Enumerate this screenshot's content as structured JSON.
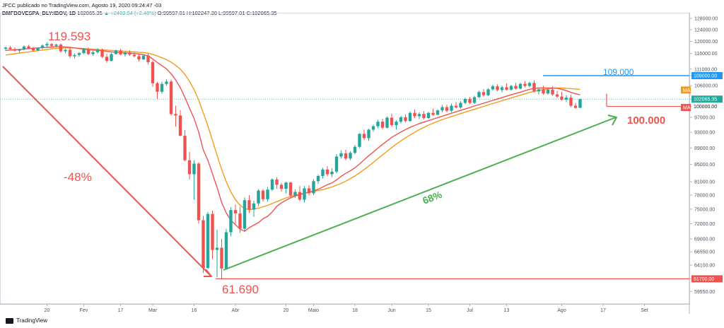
{
  "header": {
    "publisher": "JFCC publicado no TradingView.com, Agosto 19, 2020 09:24:47 -03",
    "symbol": "BMFBOVESPA_DLY:IBOV, 1D",
    "last": "102065.35",
    "change": "▲ +2469.94 (+2.48%)",
    "ohlc": "O:99597.01 H:102247.30 L:99597.01 C:102065.35"
  },
  "footer": {
    "brand": "TradingView"
  },
  "colors": {
    "up": "#26a69a",
    "down": "#ef5350",
    "ma_fast": "#ef5350",
    "ma_slow": "#f59b1c",
    "trend_down": "#ef5350",
    "trend_up": "#4caf50",
    "resistance": "#2196f3",
    "support": "#ef5350"
  },
  "chart_data": {
    "type": "candlestick",
    "ylim": [
      57500,
      129500
    ],
    "y_ticks": [
      59550,
      61700,
      64100,
      66550,
      69000,
      72000,
      75000,
      78000,
      81000,
      85000,
      89000,
      93000,
      97000,
      100000,
      102065.35,
      106000,
      109000,
      111000,
      116000,
      120000,
      124000,
      128000
    ],
    "price_scale_labels": {
      "resistance": "109000.00",
      "support": "61700.00",
      "last": "102065.35",
      "ma_slow_tag": "MA",
      "ma_fast_tag": "MA",
      "level_100k": "100000.00"
    },
    "x_ticks": [
      {
        "i": 9,
        "label": "20"
      },
      {
        "i": 17,
        "label": "Fev"
      },
      {
        "i": 25,
        "label": "17"
      },
      {
        "i": 32,
        "label": "Mar"
      },
      {
        "i": 41,
        "label": "16"
      },
      {
        "i": 50,
        "label": "Abr"
      },
      {
        "i": 61,
        "label": "20"
      },
      {
        "i": 67,
        "label": "Maio"
      },
      {
        "i": 76,
        "label": "18"
      },
      {
        "i": 84,
        "label": "Jun"
      },
      {
        "i": 92,
        "label": "15"
      },
      {
        "i": 101,
        "label": "Jul"
      },
      {
        "i": 109,
        "label": "13"
      },
      {
        "i": 121,
        "label": "Ago"
      },
      {
        "i": 130,
        "label": "17"
      },
      {
        "i": 139,
        "label": "Set"
      }
    ],
    "candles": [
      [
        117500,
        118200,
        116800,
        117900
      ],
      [
        117900,
        118400,
        117200,
        117400
      ],
      [
        117400,
        118000,
        116500,
        116900
      ],
      [
        116900,
        117500,
        116200,
        117300
      ],
      [
        117300,
        118600,
        117000,
        118300
      ],
      [
        118300,
        118800,
        117400,
        117700
      ],
      [
        117700,
        118100,
        116600,
        117000
      ],
      [
        117000,
        118000,
        116700,
        117800
      ],
      [
        117800,
        119000,
        117400,
        118600
      ],
      [
        118600,
        119593,
        118000,
        119100
      ],
      [
        119100,
        119400,
        118200,
        118500
      ],
      [
        118500,
        119200,
        117900,
        118900
      ],
      [
        118900,
        119300,
        116200,
        116700
      ],
      [
        116700,
        117500,
        116000,
        117200
      ],
      [
        117200,
        117900,
        114500,
        115100
      ],
      [
        115100,
        116000,
        114300,
        115500
      ],
      [
        115500,
        116500,
        114900,
        116100
      ],
      [
        116100,
        117800,
        115800,
        117300
      ],
      [
        117300,
        117900,
        115400,
        115800
      ],
      [
        115800,
        116800,
        115200,
        116400
      ],
      [
        116400,
        117700,
        116000,
        117200
      ],
      [
        117200,
        117600,
        114500,
        114900
      ],
      [
        114900,
        115900,
        113000,
        113600
      ],
      [
        113600,
        116200,
        113400,
        115800
      ],
      [
        115800,
        117300,
        115600,
        116900
      ],
      [
        116900,
        117500,
        115400,
        115700
      ],
      [
        115700,
        116700,
        115000,
        116300
      ],
      [
        116300,
        117000,
        115200,
        115600
      ],
      [
        115600,
        116400,
        114700,
        115100
      ],
      [
        115100,
        116000,
        113400,
        114100
      ],
      [
        114100,
        115800,
        113800,
        115300
      ],
      [
        115300,
        116000,
        112500,
        113200
      ],
      [
        113200,
        113800,
        105600,
        106700
      ],
      [
        106700,
        107100,
        102000,
        104200
      ],
      [
        104200,
        107200,
        103600,
        106500
      ],
      [
        106500,
        107900,
        106000,
        107200
      ],
      [
        107200,
        107800,
        97500,
        97900
      ],
      [
        97900,
        100200,
        94500,
        97500
      ],
      [
        97500,
        99000,
        92000,
        92100
      ],
      [
        92100,
        93600,
        85800,
        86000
      ],
      [
        86000,
        88000,
        81500,
        82700
      ],
      [
        82700,
        86000,
        77000,
        85200
      ],
      [
        85200,
        85500,
        72000,
        72700
      ],
      [
        72700,
        73600,
        62700,
        63600
      ],
      [
        63600,
        74400,
        63400,
        74000
      ],
      [
        74000,
        74700,
        65200,
        66900
      ],
      [
        66900,
        70800,
        62000,
        67300
      ],
      [
        67300,
        69000,
        61690,
        63500
      ],
      [
        63500,
        71000,
        63300,
        70300
      ],
      [
        70300,
        75400,
        69500,
        74800
      ],
      [
        74800,
        76000,
        72000,
        74100
      ],
      [
        74100,
        75500,
        70200,
        71000
      ],
      [
        71000,
        77500,
        70400,
        76900
      ],
      [
        76900,
        78000,
        74200,
        74900
      ],
      [
        74900,
        76800,
        73400,
        76200
      ],
      [
        76200,
        79300,
        75600,
        79000
      ],
      [
        79000,
        79300,
        76600,
        77100
      ],
      [
        77100,
        79800,
        76600,
        79200
      ],
      [
        79200,
        81800,
        78900,
        81500
      ],
      [
        81500,
        82000,
        79400,
        80300
      ],
      [
        80300,
        80700,
        78800,
        79400
      ],
      [
        79400,
        81000,
        78400,
        80800
      ],
      [
        80800,
        81000,
        77400,
        77900
      ],
      [
        77900,
        79300,
        77400,
        78700
      ],
      [
        78700,
        80000,
        76700,
        77000
      ],
      [
        77000,
        80000,
        76400,
        79500
      ],
      [
        79500,
        80200,
        77900,
        78400
      ],
      [
        78400,
        81600,
        78000,
        81100
      ],
      [
        81100,
        82600,
        80500,
        82300
      ],
      [
        82300,
        84200,
        81700,
        83800
      ],
      [
        83800,
        84600,
        82200,
        82700
      ],
      [
        82700,
        84100,
        82000,
        83300
      ],
      [
        83300,
        87500,
        82900,
        86900
      ],
      [
        86900,
        88400,
        86400,
        87700
      ],
      [
        87700,
        88600,
        86000,
        86400
      ],
      [
        86400,
        88200,
        86000,
        87800
      ],
      [
        87800,
        89800,
        87500,
        89300
      ],
      [
        89300,
        92800,
        89000,
        92600
      ],
      [
        92600,
        93700,
        91000,
        91500
      ],
      [
        91500,
        94000,
        90800,
        93700
      ],
      [
        93700,
        95000,
        93200,
        94600
      ],
      [
        94600,
        96300,
        94100,
        95800
      ],
      [
        95800,
        96600,
        93800,
        94200
      ],
      [
        94200,
        97200,
        94000,
        96900
      ],
      [
        96900,
        98000,
        94500,
        94900
      ],
      [
        94900,
        96200,
        93700,
        95800
      ],
      [
        95800,
        97400,
        95300,
        97000
      ],
      [
        97000,
        97800,
        95600,
        96000
      ],
      [
        96000,
        98600,
        95800,
        98200
      ],
      [
        98200,
        99100,
        96800,
        97300
      ],
      [
        97300,
        98400,
        96500,
        97900
      ],
      [
        97900,
        98700,
        96400,
        96800
      ],
      [
        96800,
        98500,
        96600,
        98200
      ],
      [
        98200,
        99400,
        97400,
        97700
      ],
      [
        97700,
        99200,
        97500,
        98900
      ],
      [
        98900,
        100400,
        98400,
        99800
      ],
      [
        99800,
        100500,
        98400,
        98800
      ],
      [
        98800,
        100700,
        98400,
        100200
      ],
      [
        100200,
        101200,
        99400,
        99700
      ],
      [
        99700,
        101500,
        99400,
        101000
      ],
      [
        101000,
        102500,
        100600,
        102100
      ],
      [
        102100,
        102700,
        100600,
        101000
      ],
      [
        101000,
        103000,
        100700,
        102600
      ],
      [
        102600,
        104500,
        102400,
        104100
      ],
      [
        104100,
        105000,
        102800,
        103200
      ],
      [
        103200,
        105200,
        102900,
        104900
      ],
      [
        104900,
        106300,
        104500,
        105800
      ],
      [
        105800,
        106400,
        104300,
        104700
      ],
      [
        104700,
        106000,
        104000,
        105500
      ],
      [
        105500,
        106700,
        104500,
        104800
      ],
      [
        104800,
        106200,
        104500,
        105900
      ],
      [
        105900,
        106800,
        104800,
        105100
      ],
      [
        105100,
        106900,
        104900,
        106500
      ],
      [
        106500,
        107400,
        105500,
        105900
      ],
      [
        105900,
        107200,
        105500,
        106800
      ],
      [
        106800,
        107600,
        104000,
        104300
      ],
      [
        104300,
        105500,
        103400,
        104900
      ],
      [
        104900,
        106000,
        103300,
        103700
      ],
      [
        103700,
        105200,
        103300,
        104800
      ],
      [
        104800,
        105800,
        103000,
        103400
      ],
      [
        103400,
        104500,
        102400,
        102800
      ],
      [
        102800,
        104200,
        101600,
        101900
      ],
      [
        101900,
        103200,
        101200,
        102500
      ],
      [
        102500,
        103300,
        99800,
        100200
      ],
      [
        100200,
        101000,
        99400,
        99600
      ],
      [
        99600,
        102247,
        99597,
        102065
      ]
    ],
    "ma_fast": [
      117000,
      117100,
      117200,
      117300,
      117400,
      117600,
      117700,
      117800,
      117900,
      118000,
      118100,
      118200,
      118200,
      118100,
      118000,
      117800,
      117600,
      117400,
      117200,
      117100,
      117000,
      116900,
      116700,
      116500,
      116400,
      116300,
      116200,
      116100,
      116000,
      115800,
      115600,
      115200,
      114200,
      113100,
      112100,
      111100,
      109600,
      107700,
      105400,
      102600,
      99500,
      96700,
      93100,
      88500,
      86000,
      82800,
      79700,
      76400,
      74200,
      72700,
      71800,
      70900,
      70500,
      71200,
      71700,
      72200,
      73000,
      73500,
      74400,
      75600,
      76300,
      76900,
      77400,
      77800,
      78100,
      78400,
      78600,
      78900,
      79300,
      79800,
      80300,
      80700,
      81400,
      82200,
      82900,
      83500,
      84200,
      85100,
      86100,
      87100,
      88000,
      89000,
      89900,
      90800,
      91700,
      92400,
      93100,
      93700,
      94300,
      94800,
      95300,
      95700,
      96100,
      96500,
      96900,
      97300,
      97700,
      98100,
      98500,
      98900,
      99300,
      99700,
      100100,
      100500,
      100900,
      101300,
      101700,
      102100,
      102500,
      102900,
      103300,
      103700,
      104100,
      104500,
      104900,
      105200,
      105300,
      105300,
      105300,
      105300,
      105200,
      104900,
      104500,
      104000,
      103600,
      103300
    ],
    "ma_slow": [
      115500,
      115700,
      115900,
      116100,
      116300,
      116500,
      116700,
      116900,
      117100,
      117300,
      117500,
      117600,
      117700,
      117800,
      117800,
      117800,
      117700,
      117600,
      117500,
      117400,
      117300,
      117200,
      117100,
      117000,
      116900,
      116800,
      116700,
      116600,
      116500,
      116400,
      116300,
      116100,
      115700,
      115200,
      114600,
      114000,
      113200,
      112200,
      111000,
      109400,
      107300,
      104800,
      101800,
      98200,
      94700,
      90900,
      87200,
      83800,
      81000,
      78700,
      77000,
      75800,
      75100,
      74900,
      75000,
      75200,
      75500,
      75800,
      76200,
      76600,
      77000,
      77400,
      77700,
      78000,
      78200,
      78400,
      78600,
      78800,
      79000,
      79200,
      79500,
      79800,
      80200,
      80600,
      81100,
      81700,
      82300,
      83000,
      83800,
      84600,
      85500,
      86400,
      87300,
      88200,
      89100,
      90000,
      90800,
      91600,
      92300,
      93000,
      93700,
      94300,
      94900,
      95400,
      95900,
      96400,
      96800,
      97200,
      97600,
      98000,
      98400,
      98800,
      99200,
      99600,
      100000,
      100400,
      100800,
      101200,
      101600,
      102000,
      102400,
      102800,
      103200,
      103600,
      104000,
      104300,
      104600,
      104800,
      105000,
      105200,
      105300,
      105300,
      105200,
      105100,
      105000,
      104900
    ],
    "annotations": {
      "peak_label": "119.593",
      "trough_label": "61.690",
      "drop_label": "-48%",
      "rise_label": "68%",
      "resistance_label": "109.000",
      "support_label": "100.000"
    }
  }
}
